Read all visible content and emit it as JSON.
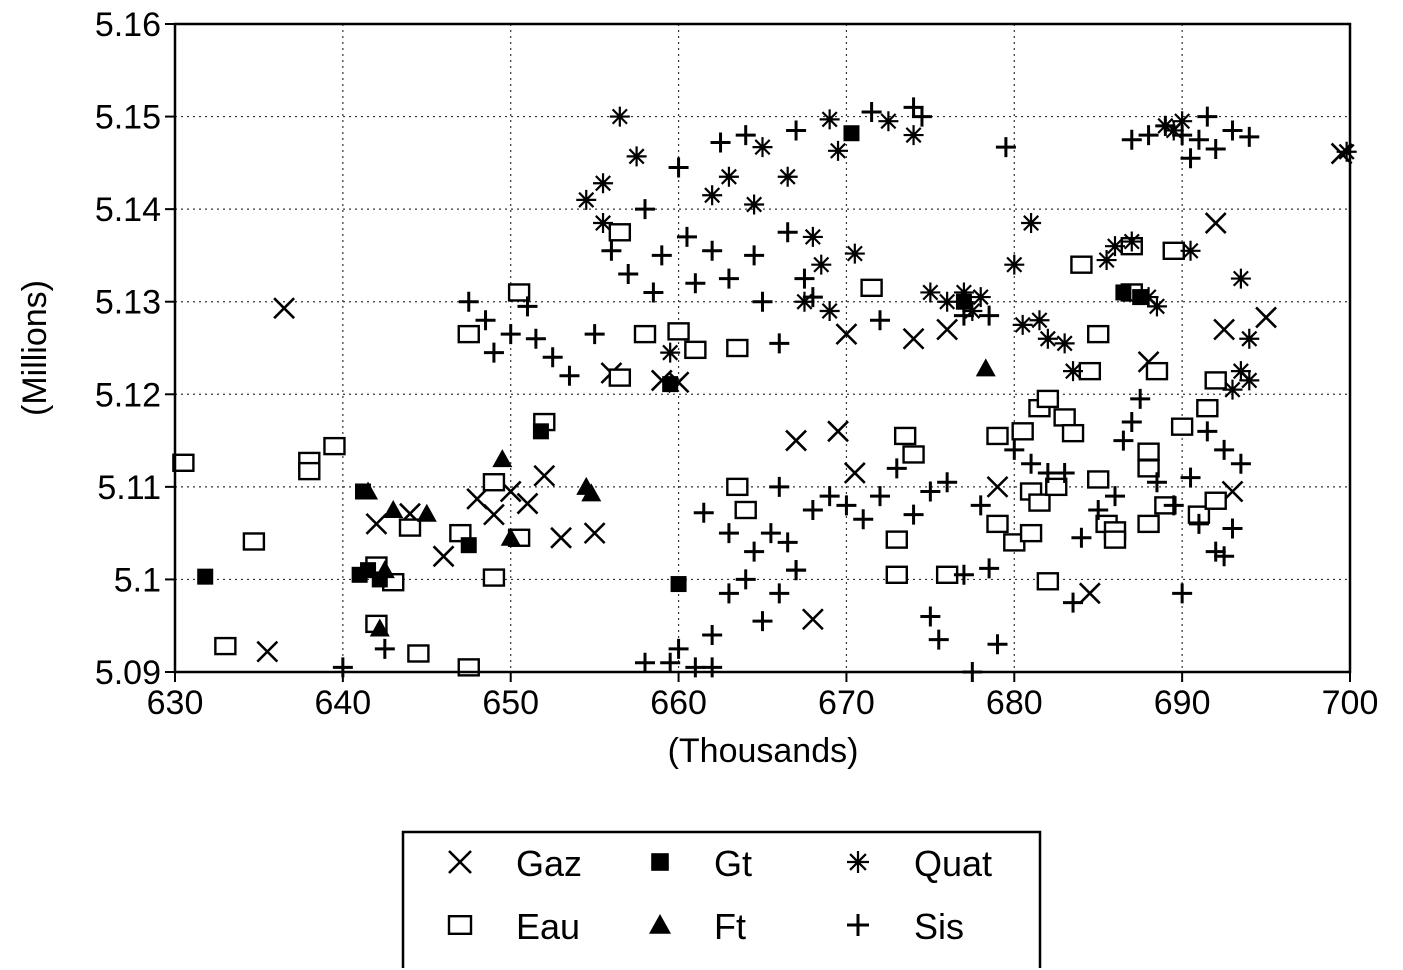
{
  "chart_data": {
    "type": "scatter",
    "title": "",
    "xlabel": "(Thousands)",
    "ylabel": "(Millions)",
    "xlim": [
      630,
      700
    ],
    "ylim": [
      5.09,
      5.16
    ],
    "x_ticks": [
      "630",
      "640",
      "650",
      "660",
      "670",
      "680",
      "690",
      "700"
    ],
    "y_ticks": [
      "5.16",
      "5.15",
      "5.14",
      "5.13",
      "5.12",
      "5.11",
      "5.1",
      "5.09"
    ],
    "grid": true,
    "legend_position": "bottom",
    "series": [
      {
        "name": "Gaz",
        "marker": "x",
        "points": [
          [
            636.5,
            5.1293
          ],
          [
            635.5,
            5.0922
          ],
          [
            642,
            5.106
          ],
          [
            644,
            5.1071
          ],
          [
            646,
            5.1025
          ],
          [
            648,
            5.1087
          ],
          [
            649,
            5.107
          ],
          [
            650,
            5.1095
          ],
          [
            651,
            5.1082
          ],
          [
            652,
            5.1112
          ],
          [
            653,
            5.1045
          ],
          [
            655,
            5.105
          ],
          [
            656,
            5.1223
          ],
          [
            659,
            5.1215
          ],
          [
            668,
            5.0957
          ],
          [
            669.5,
            5.116
          ],
          [
            667,
            5.115
          ],
          [
            670.5,
            5.1115
          ],
          [
            674,
            5.126
          ],
          [
            676,
            5.127
          ],
          [
            679,
            5.11
          ],
          [
            684.5,
            5.0985
          ],
          [
            688,
            5.1235
          ],
          [
            692,
            5.1385
          ],
          [
            692.5,
            5.127
          ],
          [
            693,
            5.1095
          ],
          [
            695,
            5.1283
          ],
          [
            699.5,
            5.146
          ],
          [
            670,
            5.1265
          ],
          [
            660,
            5.1213
          ]
        ]
      },
      {
        "name": "Eau",
        "marker": "square",
        "points": [
          [
            630.5,
            5.1126
          ],
          [
            633,
            5.0928
          ],
          [
            634.7,
            5.1041
          ],
          [
            638,
            5.1128
          ],
          [
            638,
            5.1117
          ],
          [
            639.5,
            5.1144
          ],
          [
            642,
            5.1015
          ],
          [
            642,
            5.0952
          ],
          [
            643,
            5.0997
          ],
          [
            644,
            5.1056
          ],
          [
            644.5,
            5.092
          ],
          [
            647,
            5.105
          ],
          [
            647.5,
            5.0905
          ],
          [
            647.5,
            5.1265
          ],
          [
            649,
            5.1105
          ],
          [
            649,
            5.1002
          ],
          [
            650.5,
            5.131
          ],
          [
            650.5,
            5.1045
          ],
          [
            652,
            5.117
          ],
          [
            656.5,
            5.1218
          ],
          [
            656.5,
            5.1375
          ],
          [
            658,
            5.1265
          ],
          [
            660,
            5.1268
          ],
          [
            661,
            5.1248
          ],
          [
            663.5,
            5.125
          ],
          [
            663.5,
            5.11
          ],
          [
            664,
            5.1075
          ],
          [
            671.5,
            5.1315
          ],
          [
            673,
            5.1005
          ],
          [
            673,
            5.1043
          ],
          [
            673.5,
            5.1155
          ],
          [
            674,
            5.1135
          ],
          [
            676,
            5.1005
          ],
          [
            679,
            5.106
          ],
          [
            679,
            5.1155
          ],
          [
            680,
            5.104
          ],
          [
            680.5,
            5.116
          ],
          [
            681,
            5.1095
          ],
          [
            681,
            5.105
          ],
          [
            681.5,
            5.1083
          ],
          [
            681.5,
            5.1185
          ],
          [
            682,
            5.1195
          ],
          [
            682,
            5.0998
          ],
          [
            682.5,
            5.11
          ],
          [
            683,
            5.1175
          ],
          [
            683.5,
            5.1158
          ],
          [
            684,
            5.134
          ],
          [
            684.5,
            5.1225
          ],
          [
            685,
            5.1265
          ],
          [
            685,
            5.1108
          ],
          [
            685.5,
            5.106
          ],
          [
            686,
            5.1053
          ],
          [
            686,
            5.1043
          ],
          [
            687,
            5.136
          ],
          [
            687,
            5.131
          ],
          [
            688,
            5.1138
          ],
          [
            688,
            5.112
          ],
          [
            688,
            5.106
          ],
          [
            688.5,
            5.1225
          ],
          [
            689,
            5.108
          ],
          [
            689.5,
            5.1355
          ],
          [
            690,
            5.1165
          ],
          [
            691,
            5.107
          ],
          [
            691.5,
            5.1185
          ],
          [
            692,
            5.1215
          ],
          [
            692,
            5.1085
          ]
        ]
      },
      {
        "name": "Gt",
        "marker": "filled-square",
        "points": [
          [
            631.8,
            5.1003
          ],
          [
            641,
            5.1005
          ],
          [
            641.2,
            5.1095
          ],
          [
            641.5,
            5.101
          ],
          [
            642.2,
            5.1
          ],
          [
            647.5,
            5.1037
          ],
          [
            651.8,
            5.116
          ],
          [
            659.5,
            5.1211
          ],
          [
            660,
            5.0995
          ],
          [
            670.3,
            5.1482
          ],
          [
            686.5,
            5.131
          ],
          [
            687.5,
            5.1305
          ],
          [
            677,
            5.13
          ]
        ]
      },
      {
        "name": "Ft",
        "marker": "triangle",
        "points": [
          [
            641.5,
            5.1095
          ],
          [
            642.2,
            5.0947
          ],
          [
            642.5,
            5.101
          ],
          [
            643,
            5.1075
          ],
          [
            645,
            5.1071
          ],
          [
            649.5,
            5.113
          ],
          [
            650,
            5.1045
          ],
          [
            654.5,
            5.11
          ],
          [
            654.8,
            5.1093
          ],
          [
            678.3,
            5.1228
          ]
        ]
      },
      {
        "name": "Quat",
        "marker": "asterisk",
        "points": [
          [
            656.5,
            5.15
          ],
          [
            657.5,
            5.1457
          ],
          [
            655.5,
            5.1428
          ],
          [
            654.5,
            5.141
          ],
          [
            663,
            5.1435
          ],
          [
            665,
            5.1467
          ],
          [
            666.5,
            5.1435
          ],
          [
            664.5,
            5.1405
          ],
          [
            668,
            5.137
          ],
          [
            669,
            5.1497
          ],
          [
            669.5,
            5.1463
          ],
          [
            670.5,
            5.1352
          ],
          [
            668.5,
            5.134
          ],
          [
            667.5,
            5.13
          ],
          [
            669,
            5.129
          ],
          [
            672.5,
            5.1495
          ],
          [
            674,
            5.148
          ],
          [
            675,
            5.131
          ],
          [
            676,
            5.13
          ],
          [
            677,
            5.131
          ],
          [
            677.5,
            5.129
          ],
          [
            678,
            5.1305
          ],
          [
            680,
            5.134
          ],
          [
            680.5,
            5.1275
          ],
          [
            681,
            5.1385
          ],
          [
            681.5,
            5.128
          ],
          [
            682,
            5.126
          ],
          [
            683,
            5.1255
          ],
          [
            683.5,
            5.1225
          ],
          [
            685.5,
            5.1345
          ],
          [
            686,
            5.136
          ],
          [
            687,
            5.1365
          ],
          [
            688,
            5.1305
          ],
          [
            688.5,
            5.1295
          ],
          [
            689,
            5.149
          ],
          [
            689.5,
            5.1485
          ],
          [
            690,
            5.1495
          ],
          [
            690.5,
            5.1355
          ],
          [
            693.5,
            5.1325
          ],
          [
            693.5,
            5.1225
          ],
          [
            694,
            5.1215
          ],
          [
            693,
            5.1205
          ],
          [
            694,
            5.126
          ],
          [
            699.8,
            5.1462
          ],
          [
            659.5,
            5.1245
          ],
          [
            662,
            5.1415
          ],
          [
            655.5,
            5.1385
          ]
        ]
      },
      {
        "name": "Sis",
        "marker": "plus",
        "points": [
          [
            640,
            5.0905
          ],
          [
            642.5,
            5.0925
          ],
          [
            647.5,
            5.13
          ],
          [
            648.5,
            5.128
          ],
          [
            649,
            5.1245
          ],
          [
            650,
            5.1265
          ],
          [
            651,
            5.1295
          ],
          [
            651.5,
            5.126
          ],
          [
            652.5,
            5.124
          ],
          [
            653.5,
            5.122
          ],
          [
            655,
            5.1265
          ],
          [
            656,
            5.1355
          ],
          [
            657,
            5.133
          ],
          [
            658,
            5.14
          ],
          [
            658.5,
            5.131
          ],
          [
            659,
            5.135
          ],
          [
            660,
            5.1445
          ],
          [
            660.5,
            5.137
          ],
          [
            661,
            5.132
          ],
          [
            662,
            5.1355
          ],
          [
            662.5,
            5.1472
          ],
          [
            663,
            5.1325
          ],
          [
            664,
            5.148
          ],
          [
            664.5,
            5.135
          ],
          [
            665,
            5.13
          ],
          [
            666,
            5.1255
          ],
          [
            666.5,
            5.1375
          ],
          [
            667,
            5.1485
          ],
          [
            667.5,
            5.1325
          ],
          [
            668,
            5.1305
          ],
          [
            671.5,
            5.1505
          ],
          [
            674,
            5.151
          ],
          [
            674.5,
            5.15
          ],
          [
            672,
            5.128
          ],
          [
            679.5,
            5.1467
          ],
          [
            677,
            5.1285
          ],
          [
            678.5,
            5.1285
          ],
          [
            661.5,
            5.1072
          ],
          [
            663,
            5.105
          ],
          [
            664.5,
            5.103
          ],
          [
            665.5,
            5.105
          ],
          [
            666,
            5.11
          ],
          [
            666.5,
            5.104
          ],
          [
            667,
            5.101
          ],
          [
            668,
            5.1075
          ],
          [
            669,
            5.109
          ],
          [
            670,
            5.108
          ],
          [
            671,
            5.1065
          ],
          [
            672,
            5.109
          ],
          [
            673,
            5.112
          ],
          [
            674,
            5.107
          ],
          [
            675,
            5.1095
          ],
          [
            676,
            5.1105
          ],
          [
            662,
            5.094
          ],
          [
            663,
            5.0985
          ],
          [
            664,
            5.1
          ],
          [
            665,
            5.0955
          ],
          [
            666,
            5.0985
          ],
          [
            667,
            5.101
          ],
          [
            660,
            5.0925
          ],
          [
            661,
            5.0905
          ],
          [
            662,
            5.0905
          ],
          [
            658,
            5.091
          ],
          [
            659.5,
            5.091
          ],
          [
            675,
            5.096
          ],
          [
            675.5,
            5.0935
          ],
          [
            677,
            5.1005
          ],
          [
            677.5,
            5.09
          ],
          [
            678.5,
            5.1012
          ],
          [
            679,
            5.093
          ],
          [
            678,
            5.108
          ],
          [
            680,
            5.114
          ],
          [
            681,
            5.1125
          ],
          [
            682,
            5.1115
          ],
          [
            683,
            5.1115
          ],
          [
            683.5,
            5.0975
          ],
          [
            684,
            5.1045
          ],
          [
            685,
            5.1075
          ],
          [
            686,
            5.109
          ],
          [
            686.5,
            5.115
          ],
          [
            687,
            5.117
          ],
          [
            687.5,
            5.1195
          ],
          [
            688.5,
            5.1105
          ],
          [
            689.5,
            5.108
          ],
          [
            690,
            5.0985
          ],
          [
            690.5,
            5.111
          ],
          [
            691,
            5.106
          ],
          [
            691.5,
            5.116
          ],
          [
            692,
            5.103
          ],
          [
            692.5,
            5.114
          ],
          [
            693,
            5.1055
          ],
          [
            693.5,
            5.1125
          ],
          [
            687,
            5.1475
          ],
          [
            688,
            5.148
          ],
          [
            689,
            5.149
          ],
          [
            690,
            5.148
          ],
          [
            691,
            5.1475
          ],
          [
            691.5,
            5.15
          ],
          [
            692,
            5.1465
          ],
          [
            693,
            5.1485
          ],
          [
            694,
            5.1478
          ],
          [
            690.5,
            5.1455
          ],
          [
            692.5,
            5.1025
          ]
        ]
      }
    ]
  },
  "legend": {
    "items": [
      {
        "label": "Gaz",
        "icon": "x-marker-icon"
      },
      {
        "label": "Gt",
        "icon": "filled-square-marker-icon"
      },
      {
        "label": "Quat",
        "icon": "asterisk-marker-icon"
      },
      {
        "label": "Eau",
        "icon": "open-square-marker-icon"
      },
      {
        "label": "Ft",
        "icon": "filled-triangle-marker-icon"
      },
      {
        "label": "Sis",
        "icon": "plus-marker-icon"
      }
    ]
  },
  "colors": {
    "ink": "#000000",
    "background": "#ffffff"
  }
}
